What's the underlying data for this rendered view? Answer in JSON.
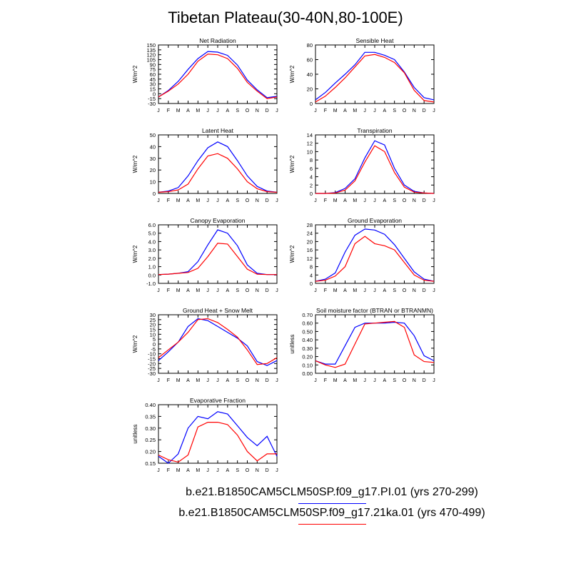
{
  "title": "Tibetan Plateau(30-40N,80-100E)",
  "months": [
    "J",
    "F",
    "M",
    "A",
    "M",
    "J",
    "J",
    "A",
    "S",
    "O",
    "N",
    "D",
    "J"
  ],
  "legend": [
    {
      "label": "b.e21.B1850CAM5CLM50SP.f09_g17.PI.01 (yrs 270-299)",
      "color": "#0000ff"
    },
    {
      "label": "b.e21.B1850CAM5CLM50SP.f09_g17.21ka.01 (yrs 470-499)",
      "color": "#ff0000"
    }
  ],
  "chart_data": [
    {
      "type": "line",
      "title": "Net Radiation",
      "ylabel": "W/m^2",
      "ylim": [
        -30,
        150
      ],
      "yticks": [
        "-30",
        "-15",
        "0",
        "15",
        "30",
        "45",
        "60",
        "75",
        "90",
        "105",
        "120",
        "135",
        "150"
      ],
      "series": [
        {
          "color": "#0000ff",
          "values": [
            -10,
            10,
            38,
            75,
            108,
            130,
            128,
            118,
            88,
            42,
            12,
            -12,
            -8
          ]
        },
        {
          "color": "#ff0000",
          "values": [
            -10,
            8,
            30,
            60,
            100,
            122,
            120,
            108,
            78,
            35,
            8,
            -15,
            -10
          ]
        }
      ]
    },
    {
      "type": "line",
      "title": "Sensible Heat",
      "ylabel": "W/m^2",
      "ylim": [
        0,
        80
      ],
      "yticks": [
        "0",
        "20",
        "40",
        "60",
        "80"
      ],
      "series": [
        {
          "color": "#0000ff",
          "values": [
            5,
            15,
            28,
            40,
            53,
            70,
            70,
            66,
            60,
            43,
            22,
            8,
            5
          ]
        },
        {
          "color": "#ff0000",
          "values": [
            2,
            10,
            22,
            35,
            50,
            65,
            67,
            63,
            56,
            42,
            18,
            4,
            2
          ]
        }
      ]
    },
    {
      "type": "line",
      "title": "Latent Heat",
      "ylabel": "W/m^2",
      "ylim": [
        0,
        50
      ],
      "yticks": [
        "0",
        "10",
        "20",
        "30",
        "40",
        "50"
      ],
      "series": [
        {
          "color": "#0000ff",
          "values": [
            1,
            2,
            5,
            15,
            28,
            39,
            44,
            40,
            28,
            15,
            6,
            2,
            1
          ]
        },
        {
          "color": "#ff0000",
          "values": [
            1,
            1.5,
            3,
            8,
            21,
            32,
            34,
            30,
            21,
            10,
            4,
            1.5,
            1
          ]
        }
      ]
    },
    {
      "type": "line",
      "title": "Transpiration",
      "ylabel": "W/m^2",
      "ylim": [
        0,
        14
      ],
      "yticks": [
        "0",
        "2",
        "4",
        "6",
        "8",
        "10",
        "12",
        "14"
      ],
      "series": [
        {
          "color": "#0000ff",
          "values": [
            0,
            0,
            0.2,
            1.2,
            3.5,
            8.5,
            12.6,
            11.6,
            6.0,
            2.0,
            0.5,
            0.1,
            0
          ]
        },
        {
          "color": "#ff0000",
          "values": [
            0,
            0,
            0.1,
            0.8,
            3.0,
            7.5,
            11.4,
            10.0,
            5.0,
            1.5,
            0.3,
            0.1,
            0
          ]
        }
      ]
    },
    {
      "type": "line",
      "title": "Canopy Evaporation",
      "ylabel": "W/m^2",
      "ylim": [
        -1,
        6
      ],
      "yticks": [
        "-1.0",
        "0.0",
        "1.0",
        "2.0",
        "3.0",
        "4.0",
        "5.0",
        "6.0"
      ],
      "series": [
        {
          "color": "#0000ff",
          "values": [
            0.05,
            0.1,
            0.2,
            0.4,
            1.6,
            3.6,
            5.4,
            5.0,
            3.5,
            1.2,
            0.2,
            0.05,
            0.05
          ]
        },
        {
          "color": "#ff0000",
          "values": [
            0.05,
            0.1,
            0.2,
            0.3,
            0.8,
            2.2,
            3.8,
            3.7,
            2.2,
            0.7,
            0.1,
            0.05,
            0.05
          ]
        }
      ]
    },
    {
      "type": "line",
      "title": "Ground Evaporation",
      "ylabel": "W/m^2",
      "ylim": [
        0,
        28
      ],
      "yticks": [
        "0",
        "4",
        "8",
        "12",
        "16",
        "20",
        "24",
        "28"
      ],
      "series": [
        {
          "color": "#0000ff",
          "values": [
            1,
            2,
            5,
            15,
            23,
            26,
            25.5,
            23.5,
            18.5,
            12,
            5.5,
            2,
            1
          ]
        },
        {
          "color": "#ff0000",
          "values": [
            1,
            1.5,
            3.5,
            8,
            19,
            22.5,
            19,
            18,
            16,
            10,
            4,
            1.5,
            1
          ]
        }
      ]
    },
    {
      "type": "line",
      "title": "Ground Heat + Snow Melt",
      "ylabel": "W/m^2",
      "ylim": [
        -30,
        30
      ],
      "yticks": [
        "-30",
        "-25",
        "-20",
        "-15",
        "-10",
        "-5",
        "0",
        "5",
        "10",
        "15",
        "20",
        "25",
        "30"
      ],
      "series": [
        {
          "color": "#0000ff",
          "values": [
            -17,
            -8,
            2,
            18,
            26,
            24,
            18,
            12,
            6,
            -2,
            -18,
            -22,
            -17
          ]
        },
        {
          "color": "#ff0000",
          "values": [
            -14,
            -6,
            2,
            12,
            25,
            26,
            22,
            15,
            7,
            -6,
            -21,
            -20,
            -14
          ]
        }
      ]
    },
    {
      "type": "line",
      "title": "Soil moisture factor (BTRAN or BTRANMN)",
      "ylabel": "unitless",
      "ylim": [
        0,
        0.7
      ],
      "yticks": [
        "0.00",
        "0.10",
        "0.20",
        "0.30",
        "0.40",
        "0.50",
        "0.60",
        "0.70"
      ],
      "series": [
        {
          "color": "#0000ff",
          "values": [
            0.15,
            0.11,
            0.11,
            0.33,
            0.55,
            0.6,
            0.6,
            0.6,
            0.61,
            0.6,
            0.45,
            0.21,
            0.15
          ]
        },
        {
          "color": "#ff0000",
          "values": [
            0.15,
            0.1,
            0.07,
            0.11,
            0.35,
            0.59,
            0.6,
            0.61,
            0.62,
            0.55,
            0.22,
            0.14,
            0.13
          ]
        }
      ]
    },
    {
      "type": "line",
      "title": "Evaporative Fraction",
      "ylabel": "unitless",
      "ylim": [
        0.15,
        0.4
      ],
      "yticks": [
        "0.15",
        "0.20",
        "0.25",
        "0.30",
        "0.35",
        "0.40"
      ],
      "series": [
        {
          "color": "#0000ff",
          "values": [
            0.18,
            0.15,
            0.19,
            0.3,
            0.35,
            0.34,
            0.37,
            0.36,
            0.31,
            0.26,
            0.225,
            0.265,
            0.18
          ]
        },
        {
          "color": "#ff0000",
          "values": [
            0.185,
            0.165,
            0.155,
            0.185,
            0.305,
            0.325,
            0.325,
            0.315,
            0.27,
            0.2,
            0.16,
            0.19,
            0.19
          ]
        }
      ]
    }
  ]
}
